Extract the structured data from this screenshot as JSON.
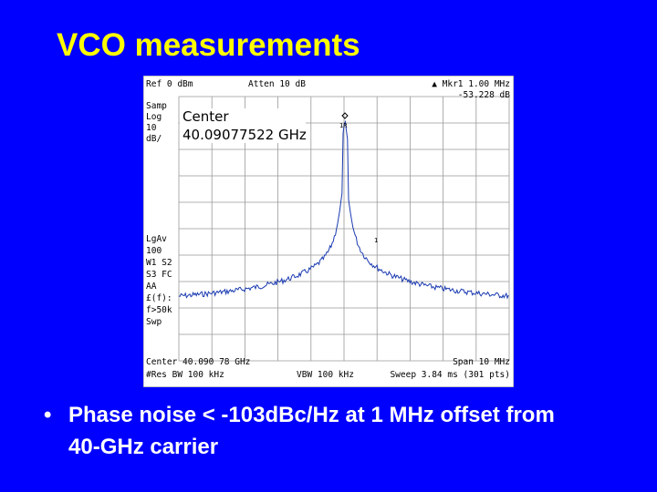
{
  "title": "VCO measurements",
  "analyzer": {
    "ref": "Ref 0 dBm",
    "atten": "Atten 10 dB",
    "marker": "▲ Mkr1  1.00 MHz",
    "marker_value": "-53.228 dB",
    "left_labels": [
      "Samp",
      "Log",
      "10",
      "dB/",
      "LgAv",
      "100",
      "W1  S2",
      "S3  FC",
      "AA",
      "£(f):",
      "f>50k",
      "Swp"
    ],
    "center_label": "Center",
    "center_freq": "40.09077522 GHz",
    "marker_labels": [
      "1R",
      "1"
    ],
    "footer": [
      "Center 40.090 78 GHz",
      "Span 10 MHz",
      "#Res BW 100 kHz",
      "VBW 100 kHz",
      "Sweep 3.84 ms (301 pts)"
    ]
  },
  "bullets": [
    "Phase noise < -103dBc/Hz at 1 MHz offset from 40-GHz carrier"
  ]
}
